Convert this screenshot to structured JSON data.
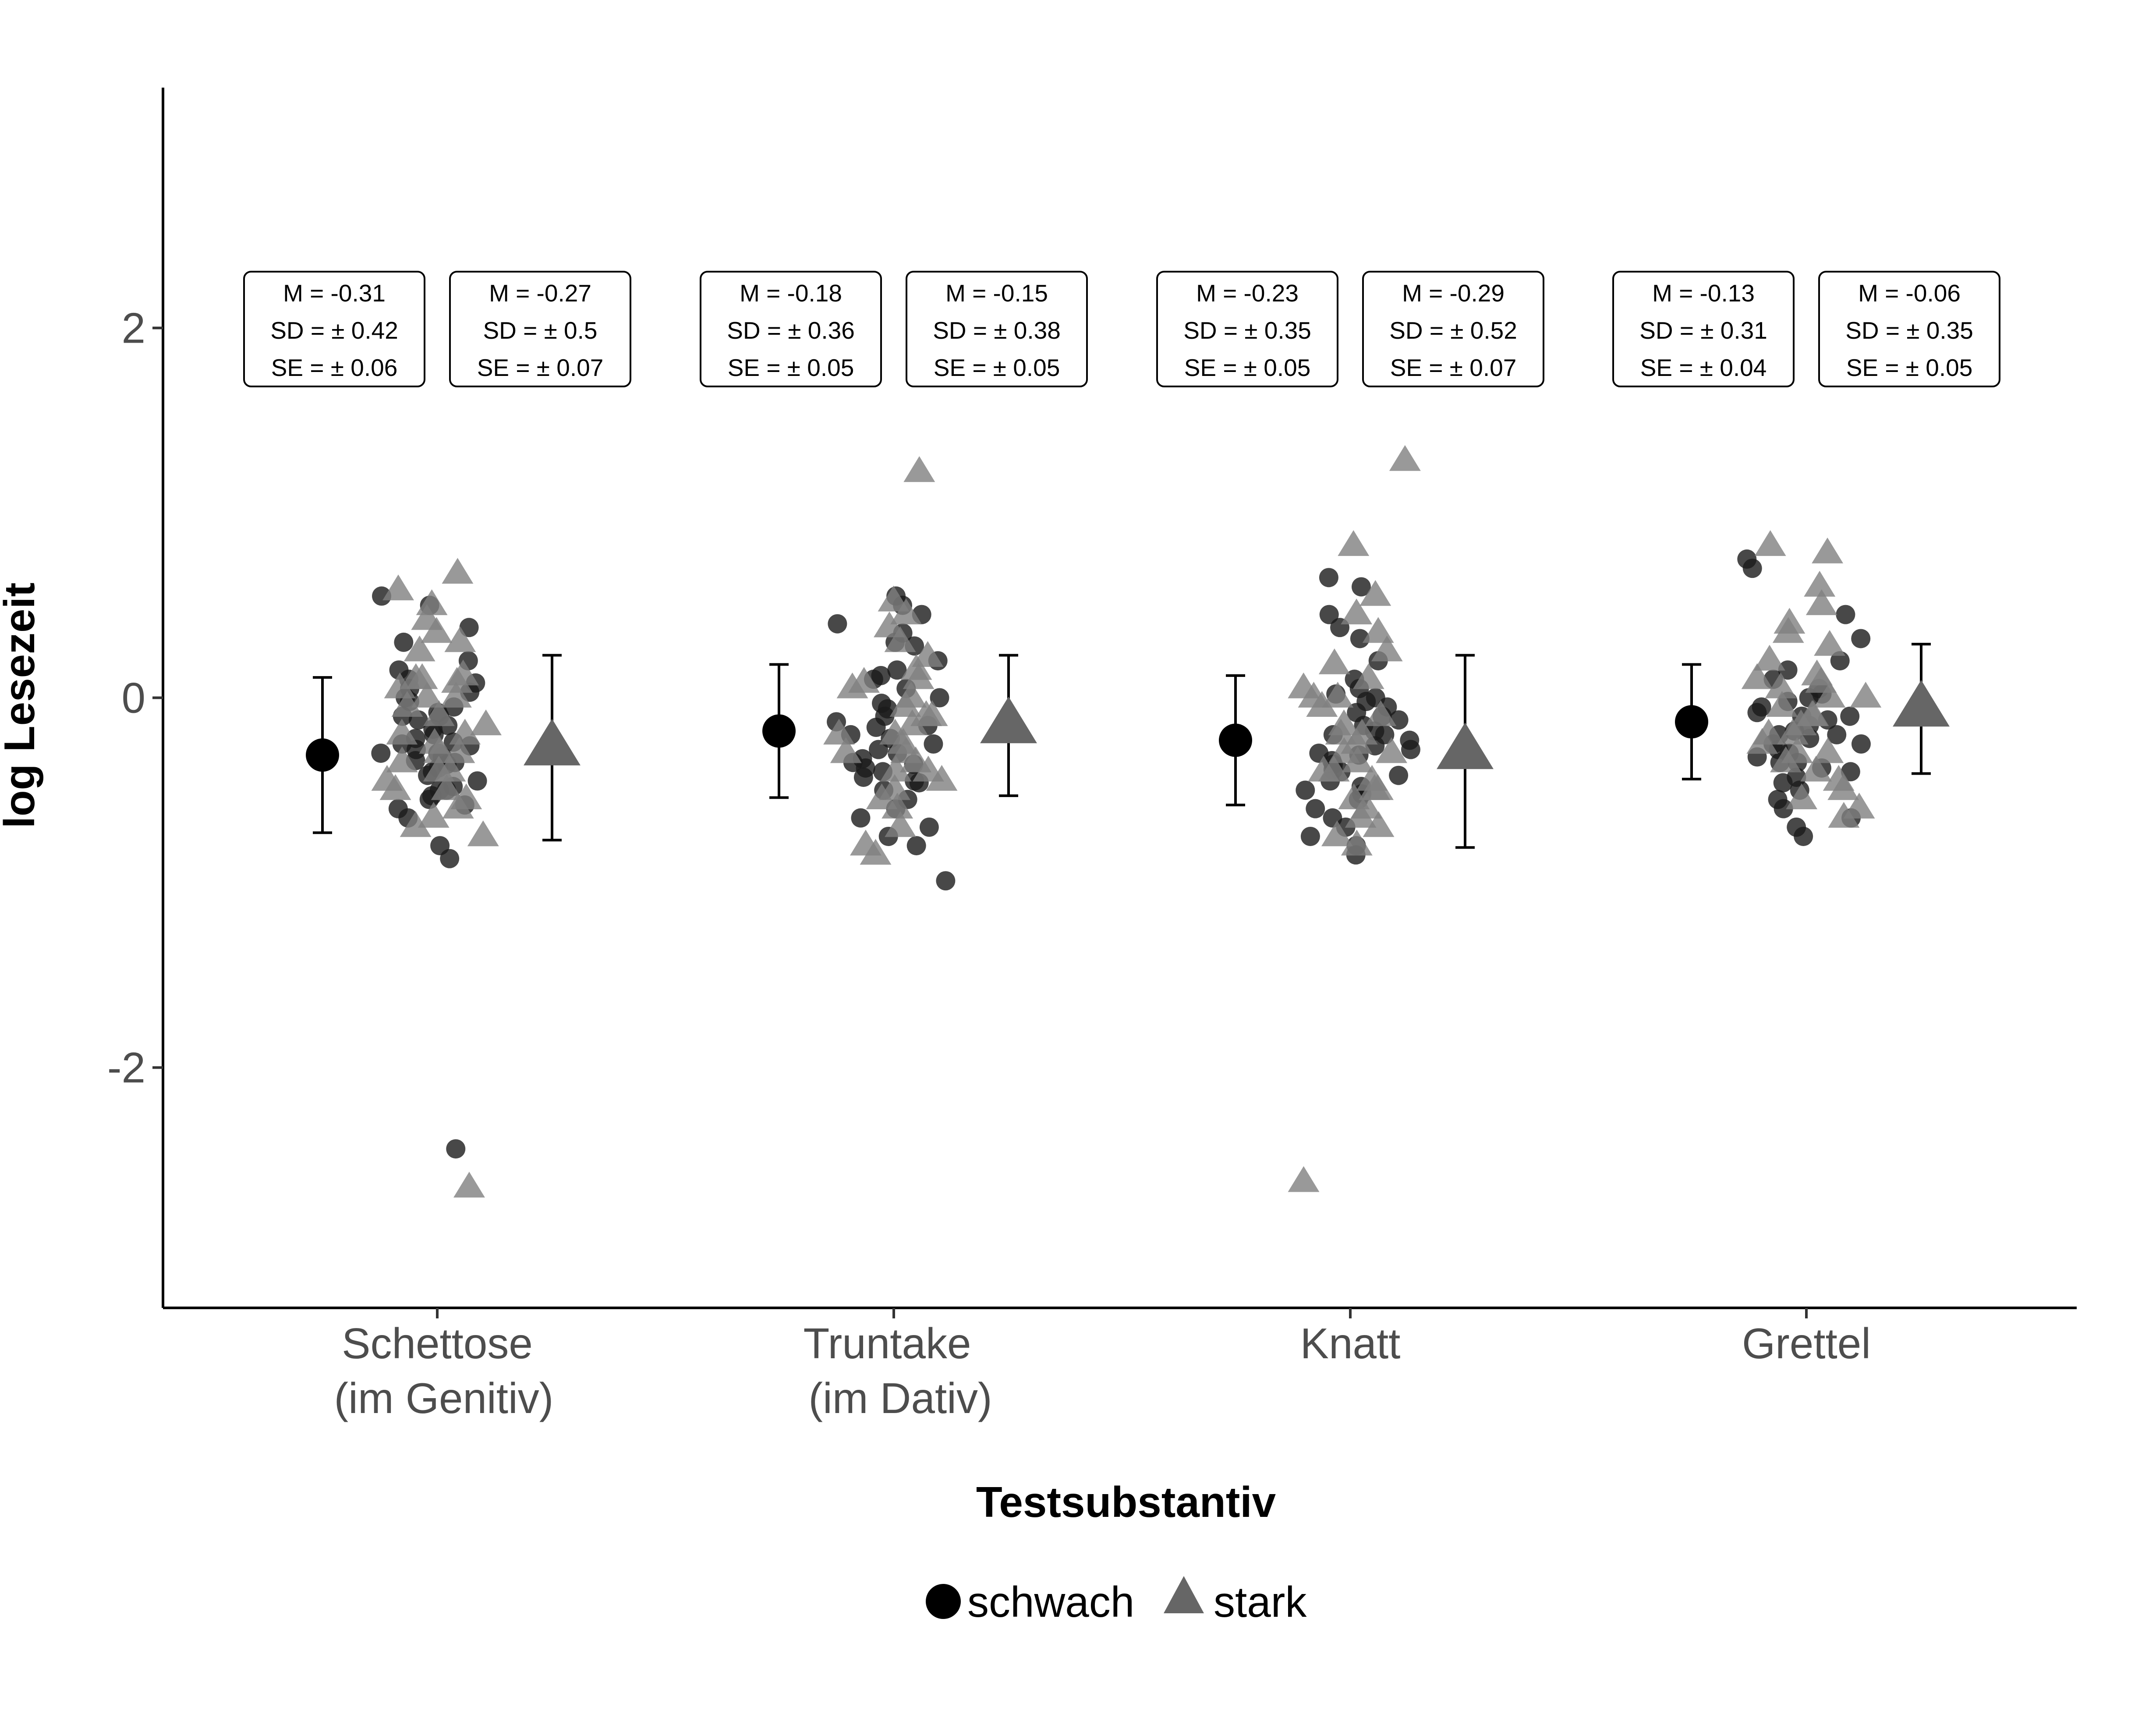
{
  "chart_data": {
    "type": "scatter",
    "title": "",
    "xlabel": "Testsubstantiv",
    "ylabel": "log Lesezeit",
    "ylim": [
      -3.3,
      3.3
    ],
    "y_ticks": [
      "-2",
      "0",
      "2"
    ],
    "grid": false,
    "legend_position": "bottom",
    "colors": {
      "schwach": "#000000",
      "stark": "#666666",
      "schwach_points": "#1a1a1a",
      "stark_points": "#808080"
    },
    "categories": [
      {
        "line1": "Schettose",
        "line2": "(im Genitiv)"
      },
      {
        "line1": "Truntake",
        "line2": "(im Dativ)"
      },
      {
        "line1": "Knatt",
        "line2": ""
      },
      {
        "line1": "Grettel",
        "line2": ""
      }
    ],
    "series": [
      {
        "name": "schwach",
        "marker": "circle",
        "mean": [
          -0.31,
          -0.18,
          -0.23,
          -0.13
        ],
        "sd": [
          0.42,
          0.36,
          0.35,
          0.31
        ],
        "se": [
          0.06,
          0.05,
          0.05,
          0.04
        ],
        "labels": [
          [
            "M = -0.31",
            "SD = ±  0.42",
            "SE = ±  0.06"
          ],
          [
            "M = -0.18",
            "SD = ±  0.36",
            "SE = ±  0.05"
          ],
          [
            "M = -0.23",
            "SD = ±  0.35",
            "SE = ±  0.05"
          ],
          [
            "M = -0.13",
            "SD = ±  0.31",
            "SE = ±  0.04"
          ]
        ],
        "points": [
          [
            -2.44,
            0.55,
            0.5,
            0.38,
            0.3,
            0.2,
            0.15,
            0.08,
            0.05,
            0.03,
            0.0,
            -0.02,
            -0.05,
            -0.08,
            -0.1,
            -0.12,
            -0.15,
            -0.17,
            -0.2,
            -0.22,
            -0.24,
            -0.26,
            -0.28,
            -0.3,
            -0.32,
            -0.34,
            -0.36,
            -0.38,
            -0.4,
            -0.42,
            -0.45,
            -0.48,
            -0.5,
            -0.53,
            -0.55,
            -0.58,
            -0.6,
            -0.65,
            -0.8,
            -0.87,
            0.1,
            -0.1,
            -0.3,
            -0.5,
            -0.25,
            -0.35
          ],
          [
            0.55,
            0.5,
            0.45,
            0.4,
            0.35,
            0.28,
            0.2,
            0.15,
            0.12,
            0.05,
            0.0,
            -0.03,
            -0.06,
            -0.1,
            -0.13,
            -0.16,
            -0.2,
            -0.22,
            -0.25,
            -0.28,
            -0.3,
            -0.33,
            -0.36,
            -0.38,
            -0.4,
            -0.43,
            -0.46,
            -0.5,
            -0.55,
            -0.6,
            -0.65,
            -0.7,
            -0.75,
            -0.8,
            -0.99,
            0.3,
            0.1,
            -0.15,
            -0.35,
            -0.45
          ],
          [
            0.65,
            0.6,
            0.45,
            0.38,
            0.32,
            0.2,
            0.1,
            0.05,
            0.02,
            -0.02,
            -0.05,
            -0.08,
            -0.12,
            -0.15,
            -0.18,
            -0.2,
            -0.23,
            -0.26,
            -0.28,
            -0.31,
            -0.34,
            -0.36,
            -0.39,
            -0.42,
            -0.45,
            -0.48,
            -0.52,
            -0.55,
            -0.6,
            -0.65,
            -0.7,
            -0.75,
            -0.8,
            -0.85,
            0.0,
            -0.3,
            -0.4,
            -0.2,
            -0.5,
            -0.1
          ],
          [
            0.75,
            0.7,
            0.45,
            0.32,
            0.2,
            0.15,
            0.1,
            0.05,
            0.02,
            -0.02,
            -0.05,
            -0.08,
            -0.1,
            -0.12,
            -0.15,
            -0.18,
            -0.2,
            -0.22,
            -0.25,
            -0.28,
            -0.3,
            -0.32,
            -0.35,
            -0.38,
            -0.4,
            -0.43,
            -0.46,
            -0.5,
            -0.55,
            -0.6,
            -0.65,
            -0.7,
            -0.75,
            0.0,
            -0.2,
            -0.35,
            -0.1,
            -0.25
          ]
        ]
      },
      {
        "name": "stark",
        "marker": "triangle",
        "mean": [
          -0.27,
          -0.15,
          -0.29,
          -0.06
        ],
        "sd": [
          0.5,
          0.38,
          0.52,
          0.35
        ],
        "se": [
          0.07,
          0.05,
          0.07,
          0.05
        ],
        "labels": [
          [
            "M = -0.27",
            "SD = ±  0.5",
            "SE = ±  0.07"
          ],
          [
            "M = -0.15",
            "SD = ±  0.38",
            "SE = ±  0.05"
          ],
          [
            "M = -0.29",
            "SD = ±  0.52",
            "SE = ±  0.07"
          ],
          [
            "M = -0.06",
            "SD = ±  0.35",
            "SE = ±  0.05"
          ]
        ],
        "points": [
          [
            -2.65,
            0.67,
            0.58,
            0.5,
            0.42,
            0.35,
            0.3,
            0.25,
            0.12,
            0.1,
            0.08,
            0.05,
            0.0,
            -0.05,
            -0.1,
            -0.15,
            -0.2,
            -0.25,
            -0.3,
            -0.35,
            -0.4,
            -0.45,
            -0.5,
            -0.55,
            -0.6,
            -0.65,
            -0.7,
            -0.75,
            0.0,
            -0.3,
            -0.5,
            -0.2,
            0.1,
            -0.4
          ],
          [
            1.22,
            0.52,
            0.45,
            0.38,
            0.3,
            0.22,
            0.15,
            0.08,
            0.05,
            0.0,
            -0.05,
            -0.1,
            -0.15,
            -0.2,
            -0.25,
            -0.3,
            -0.35,
            -0.4,
            -0.45,
            -0.5,
            -0.55,
            -0.6,
            -0.7,
            -0.8,
            -0.85,
            0.1,
            -0.1,
            -0.3,
            -0.4,
            -0.2
          ],
          [
            1.28,
            0.82,
            0.55,
            0.45,
            0.35,
            0.25,
            0.18,
            0.1,
            0.05,
            0.0,
            -0.05,
            -0.1,
            -0.15,
            -0.2,
            -0.25,
            -0.3,
            -0.35,
            -0.4,
            -0.45,
            -0.5,
            -0.55,
            -0.6,
            -0.65,
            -0.7,
            -0.75,
            -0.8,
            -2.62,
            0.0,
            -0.2,
            -0.4,
            -0.3,
            -0.5
          ],
          [
            0.82,
            0.78,
            0.6,
            0.5,
            0.4,
            0.35,
            0.28,
            0.2,
            0.12,
            0.08,
            0.05,
            0.0,
            -0.05,
            -0.1,
            -0.15,
            -0.2,
            -0.25,
            -0.3,
            -0.35,
            -0.4,
            -0.45,
            -0.5,
            -0.55,
            -0.6,
            -0.65,
            0.0,
            -0.2,
            -0.1,
            0.1,
            -0.3
          ]
        ]
      }
    ]
  }
}
